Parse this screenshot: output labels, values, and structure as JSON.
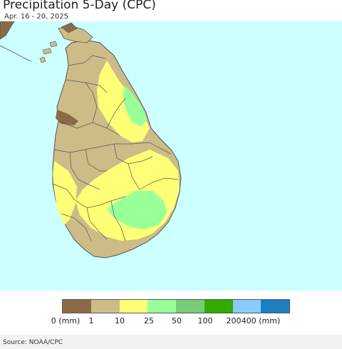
{
  "header": {
    "title": "Precipitation 5-Day (CPC)",
    "date_range": "Apr. 16 - 20, 2025"
  },
  "map": {
    "region_labels": [],
    "colors": {
      "ocean": "#ccffff",
      "land_low": "#cdbc87",
      "brown": "#8b6b47",
      "yellow": "#ffff77",
      "light_green": "#99ff99",
      "border": "#555555"
    }
  },
  "legend": {
    "swatches": [
      "#8b6b47",
      "#cdbc87",
      "#ffff77",
      "#99ff99",
      "#77cc77",
      "#33aa00",
      "#88ccff",
      "#1c7fc0"
    ],
    "ticks": [
      "0 (mm)",
      "1",
      "10",
      "25",
      "50",
      "100",
      "200",
      "400 (mm)"
    ]
  },
  "footer": {
    "source": "Source: NOAA/CPC"
  }
}
